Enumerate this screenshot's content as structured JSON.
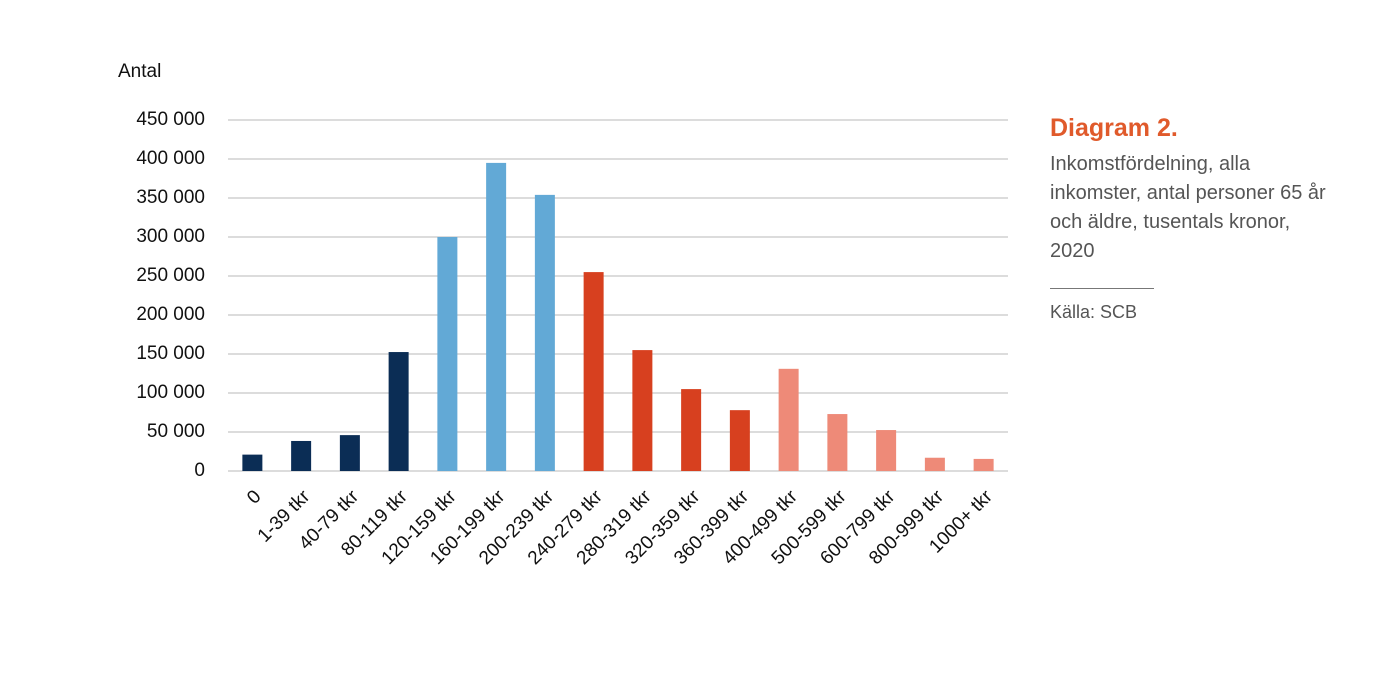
{
  "chart_data": {
    "type": "bar",
    "title": "Diagram 2.",
    "subtitle": "Inkomstfördelning, alla inkomster, antal personer 65 år och äldre, tusentals kronor, 2020",
    "source": "Källa: SCB",
    "y_label": "Antal",
    "categories": [
      "0",
      "1-39 tkr",
      "40-79 tkr",
      "80-119 tkr",
      "120-159 tkr",
      "160-199 tkr",
      "200-239 tkr",
      "240-279 tkr",
      "280-319 tkr",
      "320-359 tkr",
      "360-399 tkr",
      "400-499 tkr",
      "500-599 tkr",
      "600-799 tkr",
      "800-999 tkr",
      "1000+ tkr"
    ],
    "values": [
      21000,
      38500,
      46000,
      152500,
      300000,
      395000,
      354000,
      255000,
      155000,
      105000,
      78000,
      131000,
      73000,
      52500,
      17000,
      15500
    ],
    "colors": [
      "#0b2d55",
      "#0b2d55",
      "#0b2d55",
      "#0b2d55",
      "#62a9d6",
      "#62a9d6",
      "#62a9d6",
      "#d7401f",
      "#d7401f",
      "#d7401f",
      "#d7401f",
      "#ee8a78",
      "#ee8a78",
      "#ee8a78",
      "#ee8a78",
      "#ee8a78"
    ],
    "ylim": [
      0,
      450000
    ],
    "yticks": [
      0,
      {
        "value": 50000,
        "label": "50 000"
      },
      {
        "value": 100000,
        "label": "100 000"
      },
      {
        "value": 150000,
        "label": "150 000"
      },
      {
        "value": 200000,
        "label": "200 000"
      },
      {
        "value": 250000,
        "label": "250 000"
      },
      {
        "value": 300000,
        "label": "300 000"
      },
      {
        "value": 350000,
        "label": "350 000"
      },
      {
        "value": 400000,
        "label": "400 000"
      },
      {
        "value": 450000,
        "label": "450 000"
      }
    ],
    "grid": true
  }
}
